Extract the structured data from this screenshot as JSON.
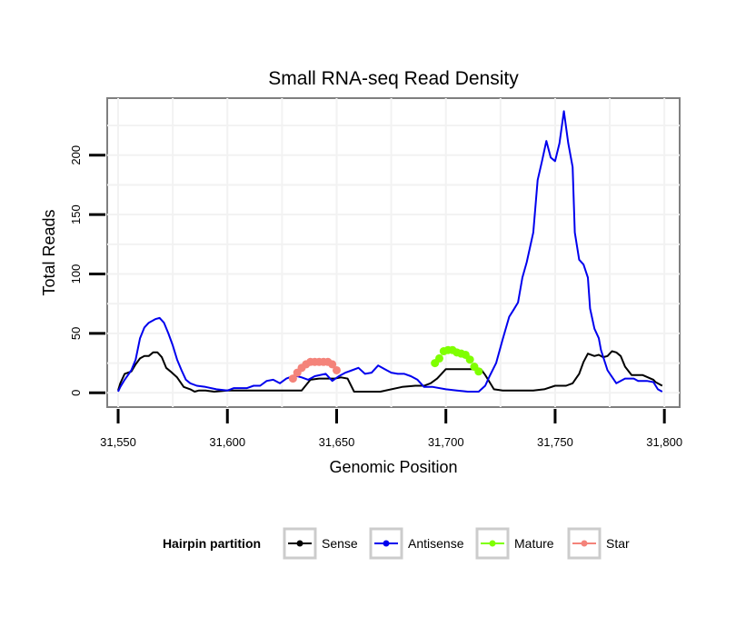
{
  "chart_data": {
    "type": "line",
    "title": "Small RNA-seq Read Density",
    "xlabel": "Genomic Position",
    "ylabel": "Total Reads",
    "xlim": [
      31545,
      31807
    ],
    "ylim": [
      -12,
      248
    ],
    "grid": true,
    "x_ticks": [
      31550,
      31600,
      31650,
      31700,
      31750,
      31800
    ],
    "x_tick_labels": [
      "31,550",
      "31,600",
      "31,650",
      "31,700",
      "31,750",
      "31,800"
    ],
    "y_ticks": [
      0,
      50,
      100,
      150,
      200
    ],
    "y_tick_labels": [
      "0",
      "50",
      "100",
      "150",
      "200"
    ],
    "legend": {
      "title": "Hairpin partition",
      "placement": "bottom",
      "entries": [
        "Sense",
        "Antisense",
        "Mature",
        "Star"
      ]
    },
    "series": [
      {
        "name": "Sense",
        "color": "#000000",
        "style": "line",
        "x": [
          31550,
          31551,
          31553,
          31556,
          31558,
          31560,
          31562,
          31564,
          31566,
          31568,
          31570,
          31572,
          31574,
          31577,
          31580,
          31583,
          31585,
          31587,
          31590,
          31594,
          31600,
          31610,
          31620,
          31630,
          31634,
          31638,
          31642,
          31646,
          31649,
          31652,
          31655,
          31658,
          31665,
          31670,
          31680,
          31686,
          31690,
          31693,
          31696,
          31698,
          31700,
          31705,
          31710,
          31713,
          31716,
          31718,
          31720,
          31722,
          31726,
          31730,
          31740,
          31745,
          31750,
          31755,
          31758,
          31761,
          31763,
          31765,
          31768,
          31770,
          31772,
          31774,
          31776,
          31778,
          31780,
          31782,
          31785,
          31790,
          31795,
          31796,
          31799
        ],
        "y": [
          2,
          8,
          16,
          18,
          24,
          29,
          31,
          31,
          34,
          34,
          30,
          21,
          18,
          13,
          5,
          3,
          1,
          2,
          2,
          1,
          2,
          2,
          2,
          2,
          2,
          11,
          12,
          12,
          12,
          13,
          12,
          1,
          1,
          1,
          5,
          6,
          6,
          8,
          12,
          16,
          20,
          20,
          20,
          20,
          20,
          15,
          9,
          3,
          2,
          2,
          2,
          3,
          6,
          6,
          8,
          16,
          26,
          33,
          31,
          32,
          30,
          31,
          35,
          34,
          31,
          22,
          15,
          15,
          11,
          9,
          6
        ]
      },
      {
        "name": "Antisense",
        "color": "#0000ee",
        "style": "line",
        "x": [
          31550,
          31551,
          31553,
          31556,
          31558,
          31560,
          31562,
          31564,
          31567,
          31569,
          31571,
          31573,
          31575,
          31577,
          31579,
          31581,
          31583,
          31586,
          31590,
          31595,
          31600,
          31603,
          31606,
          31609,
          31612,
          31615,
          31618,
          31621,
          31624,
          31627,
          31630,
          31632,
          31634,
          31637,
          31640,
          31645,
          31648,
          31651,
          31654,
          31657,
          31660,
          31663,
          31666,
          31669,
          31672,
          31675,
          31678,
          31681,
          31684,
          31687,
          31690,
          31694,
          31700,
          31705,
          31710,
          31715,
          31718,
          31720,
          31723,
          31726,
          31729,
          31731,
          31733,
          31735,
          31737,
          31740,
          31742,
          31744,
          31746,
          31747,
          31748,
          31750,
          31752,
          31754,
          31756,
          31758,
          31759,
          31761,
          31763,
          31765,
          31766,
          31768,
          31770,
          31771,
          31774,
          31778,
          31782,
          31786,
          31788,
          31790,
          31792,
          31795,
          31797,
          31799
        ],
        "y": [
          1,
          5,
          11,
          19,
          28,
          46,
          55,
          59,
          62,
          63,
          59,
          50,
          40,
          28,
          19,
          11,
          8,
          6,
          5,
          3,
          2,
          4,
          4,
          4,
          6,
          6,
          10,
          11,
          8,
          12,
          14,
          14,
          13,
          11,
          14,
          16,
          10,
          14,
          17,
          19,
          21,
          16,
          17,
          23,
          20,
          17,
          16,
          16,
          14,
          11,
          5,
          5,
          3,
          2,
          1,
          1,
          6,
          14,
          25,
          45,
          64,
          70,
          76,
          97,
          110,
          135,
          179,
          195,
          212,
          205,
          198,
          195,
          210,
          237,
          210,
          190,
          135,
          112,
          108,
          97,
          71,
          54,
          46,
          36,
          19,
          8,
          12,
          12,
          10,
          10,
          10,
          9,
          3,
          1
        ]
      },
      {
        "name": "Mature",
        "color": "#7fff00",
        "style": "points",
        "x": [
          31695,
          31697,
          31699,
          31701,
          31703,
          31705,
          31707,
          31709,
          31711,
          31713,
          31715
        ],
        "y": [
          25,
          29,
          35,
          36,
          36,
          34,
          33,
          32,
          28,
          22,
          18
        ]
      },
      {
        "name": "Star",
        "color": "#f4837a",
        "style": "points",
        "x": [
          31630,
          31632,
          31634,
          31636,
          31638,
          31640,
          31642,
          31644,
          31646,
          31648,
          31650
        ],
        "y": [
          12,
          17,
          21,
          24,
          26,
          26,
          26,
          26,
          26,
          24,
          19
        ]
      }
    ]
  }
}
